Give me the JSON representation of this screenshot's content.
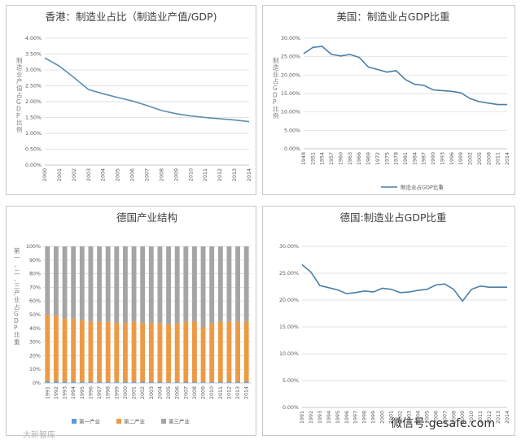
{
  "chart_data": [
    {
      "type": "line",
      "title": "香港：制造业占比（制造业产值/GDP)",
      "ylabel": "制造业产值占GDP比例",
      "x": [
        "2000",
        "2001",
        "2002",
        "2003",
        "2004",
        "2005",
        "2006",
        "2007",
        "2008",
        "2009",
        "2010",
        "2011",
        "2012",
        "2013",
        "2014"
      ],
      "series": [
        {
          "values": [
            3.38,
            3.12,
            2.76,
            2.38,
            2.25,
            2.13,
            2.02,
            1.88,
            1.72,
            1.62,
            1.55,
            1.5,
            1.46,
            1.42,
            1.37
          ]
        }
      ],
      "ylim": [
        0,
        4.0
      ],
      "yticks": [
        "0.00%",
        "0.50%",
        "1.00%",
        "1.50%",
        "2.00%",
        "2.50%",
        "3.00%",
        "3.50%",
        "4.00%"
      ],
      "color": "#5b8db0"
    },
    {
      "type": "line",
      "title": "美国：制造业占GDP比重",
      "ylabel": "制造业占GDP比例",
      "x": [
        "1948",
        "1951",
        "1954",
        "1957",
        "1960",
        "1963",
        "1966",
        "1969",
        "1972",
        "1975",
        "1978",
        "1981",
        "1984",
        "1987",
        "1990",
        "1993",
        "1996",
        "1999",
        "2002",
        "2005",
        "2008",
        "2011",
        "2014"
      ],
      "xlabels": [
        "1948",
        "1951",
        "1954",
        "1957",
        "1960",
        "1963",
        "1966",
        "1969",
        "1972",
        "1975",
        "1978",
        "1981",
        "1984",
        "1987",
        "1990",
        "1993",
        "1996",
        "1999",
        "2002",
        "2005",
        "2008",
        "2011",
        "2014"
      ],
      "series": [
        {
          "name": "制造业占GDP比重",
          "values": [
            25.8,
            27.5,
            27.8,
            25.6,
            25.2,
            25.6,
            24.8,
            22.2,
            21.5,
            20.8,
            21.2,
            18.8,
            17.5,
            17.2,
            16.0,
            15.8,
            15.6,
            15.2,
            13.6,
            12.8,
            12.4,
            12.0,
            12.0
          ]
        }
      ],
      "ylim": [
        0,
        30
      ],
      "yticks": [
        "0.00%",
        "5.00%",
        "10.00%",
        "15.00%",
        "20.00%",
        "25.00%",
        "30.00%"
      ],
      "legend": "bottom",
      "color": "#4a7fa6"
    },
    {
      "type": "bar",
      "stacked": true,
      "title": "德国产业结构",
      "ylabel": "第一、二、三产业占GDP比重",
      "categories": [
        "1991",
        "1992",
        "1993",
        "1994",
        "1995",
        "1996",
        "1997",
        "1998",
        "1999",
        "2000",
        "2001",
        "2002",
        "2003",
        "2004",
        "2005",
        "2006",
        "2007",
        "2008",
        "2009",
        "2010",
        "2011",
        "2012",
        "2013",
        "2014"
      ],
      "series": [
        {
          "name": "第一产业",
          "values": [
            1.2,
            1.2,
            1.1,
            1.1,
            1.0,
            1.0,
            1.0,
            1.0,
            1.0,
            1.0,
            1.0,
            0.9,
            0.9,
            0.9,
            0.8,
            0.8,
            0.9,
            0.9,
            0.8,
            0.8,
            0.9,
            0.9,
            0.9,
            0.9
          ],
          "color": "#5b9bd5"
        },
        {
          "name": "第二产业",
          "values": [
            49,
            48,
            46,
            46,
            45,
            44,
            44,
            44,
            43,
            43,
            44,
            43,
            43,
            43,
            42,
            43,
            44,
            44,
            40,
            43,
            44,
            44,
            44,
            44
          ],
          "color": "#ed9a45"
        },
        {
          "name": "第三产业",
          "values": [
            49.8,
            50.8,
            52.9,
            52.9,
            54.0,
            55.0,
            55.0,
            55.0,
            56.0,
            56.0,
            55.0,
            56.1,
            56.1,
            56.1,
            57.2,
            56.2,
            55.1,
            55.1,
            59.2,
            56.2,
            55.1,
            55.1,
            55.1,
            55.1
          ],
          "color": "#a5a5a5"
        }
      ],
      "ylim": [
        0,
        100
      ],
      "yticks": [
        "0%",
        "10%",
        "20%",
        "30%",
        "40%",
        "50%",
        "60%",
        "70%",
        "80%",
        "90%",
        "100%"
      ],
      "legend": "bottom"
    },
    {
      "type": "line",
      "title": "德国:制造业占GDP比重",
      "x": [
        "1991",
        "1992",
        "1993",
        "1994",
        "1995",
        "1996",
        "1997",
        "1998",
        "1999",
        "2000",
        "2001",
        "2002",
        "2003",
        "2004",
        "2005",
        "2006",
        "2007",
        "2008",
        "2009",
        "2010",
        "2011",
        "2012",
        "2013",
        "2014"
      ],
      "xlabels": [
        "1991",
        "1992",
        "1993",
        "1994",
        "1995",
        "1996",
        "1997",
        "1998",
        "1999",
        "2000",
        "2001",
        "2002",
        "2003",
        "2004",
        "2005",
        "2006",
        "2007",
        "2008",
        "2009",
        "2010",
        "2011",
        "2012",
        "2013",
        "2014"
      ],
      "series": [
        {
          "values": [
            26.6,
            25.2,
            22.7,
            22.3,
            21.9,
            21.2,
            21.4,
            21.7,
            21.5,
            22.2,
            22.0,
            21.4,
            21.5,
            21.8,
            22.0,
            22.8,
            23.0,
            22.0,
            19.8,
            22.0,
            22.6,
            22.4,
            22.4,
            22.4
          ]
        }
      ],
      "ylim": [
        0,
        30
      ],
      "yticks": [
        "0.00%",
        "5.00%",
        "10.00%",
        "15.00%",
        "20.00%",
        "25.00%",
        "30.00%"
      ],
      "color": "#4a7fa6"
    }
  ],
  "watermarks": {
    "left": "大新智库",
    "right": "微信号:gesafe.com"
  }
}
